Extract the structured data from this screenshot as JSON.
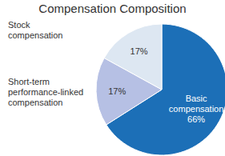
{
  "chart_data": {
    "type": "pie",
    "title": "Compensation Composition",
    "categories": [
      "Basic compensation",
      "Short-term performance-linked compensation",
      "Stock compensation"
    ],
    "values": [
      66,
      17,
      17
    ],
    "value_labels": [
      "66%",
      "17%",
      "17%"
    ],
    "colors": [
      "#1c6fb7",
      "#b6c0e4",
      "#dde7f2"
    ],
    "data_labels": true
  }
}
